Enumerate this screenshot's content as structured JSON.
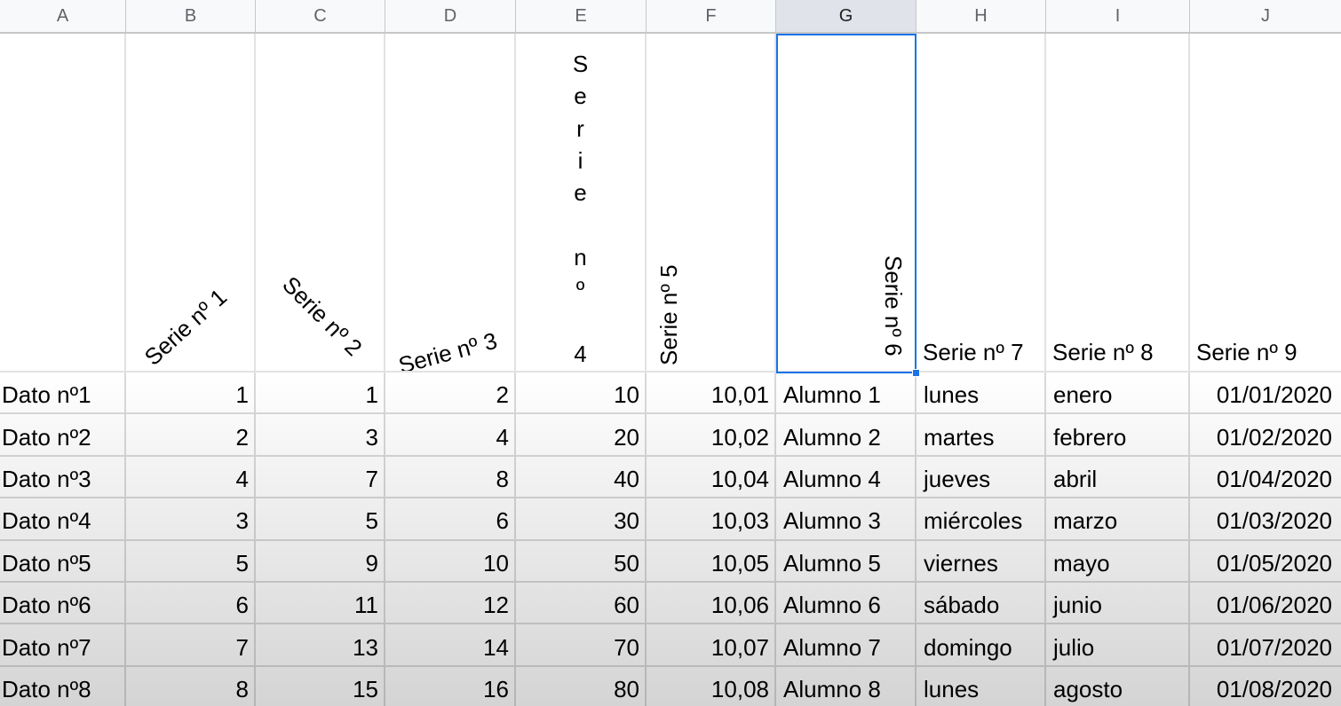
{
  "columns": [
    "A",
    "B",
    "C",
    "D",
    "E",
    "F",
    "G",
    "H",
    "I",
    "J"
  ],
  "selected_column": "G",
  "headers": {
    "b": "Serie nº 1",
    "c": "Serie nº 2",
    "d": "Serie nº 3",
    "e_chars": [
      "S",
      "e",
      "r",
      "i",
      "e",
      "",
      "n",
      "º",
      "",
      "4"
    ],
    "f": "Serie nº 5",
    "g": "Serie nº 6",
    "h": "Serie nº 7",
    "i": "Serie nº 8",
    "j": "Serie nº 9"
  },
  "rows": [
    {
      "a": "Dato nº1",
      "b": "1",
      "c": "1",
      "d": "2",
      "e": "10",
      "f": "10,01",
      "g": "Alumno 1",
      "h": "lunes",
      "i": "enero",
      "j": "01/01/2020"
    },
    {
      "a": "Dato nº2",
      "b": "2",
      "c": "3",
      "d": "4",
      "e": "20",
      "f": "10,02",
      "g": "Alumno 2",
      "h": "martes",
      "i": "febrero",
      "j": "01/02/2020"
    },
    {
      "a": "Dato nº3",
      "b": "4",
      "c": "7",
      "d": "8",
      "e": "40",
      "f": "10,04",
      "g": "Alumno 4",
      "h": "jueves",
      "i": "abril",
      "j": "01/04/2020"
    },
    {
      "a": "Dato nº4",
      "b": "3",
      "c": "5",
      "d": "6",
      "e": "30",
      "f": "10,03",
      "g": "Alumno 3",
      "h": "miércoles",
      "i": "marzo",
      "j": "01/03/2020"
    },
    {
      "a": "Dato nº5",
      "b": "5",
      "c": "9",
      "d": "10",
      "e": "50",
      "f": "10,05",
      "g": "Alumno 5",
      "h": "viernes",
      "i": "mayo",
      "j": "01/05/2020"
    },
    {
      "a": "Dato nº6",
      "b": "6",
      "c": "11",
      "d": "12",
      "e": "60",
      "f": "10,06",
      "g": "Alumno 6",
      "h": "sábado",
      "i": "junio",
      "j": "01/06/2020"
    },
    {
      "a": "Dato nº7",
      "b": "7",
      "c": "13",
      "d": "14",
      "e": "70",
      "f": "10,07",
      "g": "Alumno 7",
      "h": "domingo",
      "i": "julio",
      "j": "01/07/2020"
    },
    {
      "a": "Dato nº8",
      "b": "8",
      "c": "15",
      "d": "16",
      "e": "80",
      "f": "10,08",
      "g": "Alumno 8",
      "h": "lunes",
      "i": "agosto",
      "j": "01/08/2020"
    }
  ]
}
